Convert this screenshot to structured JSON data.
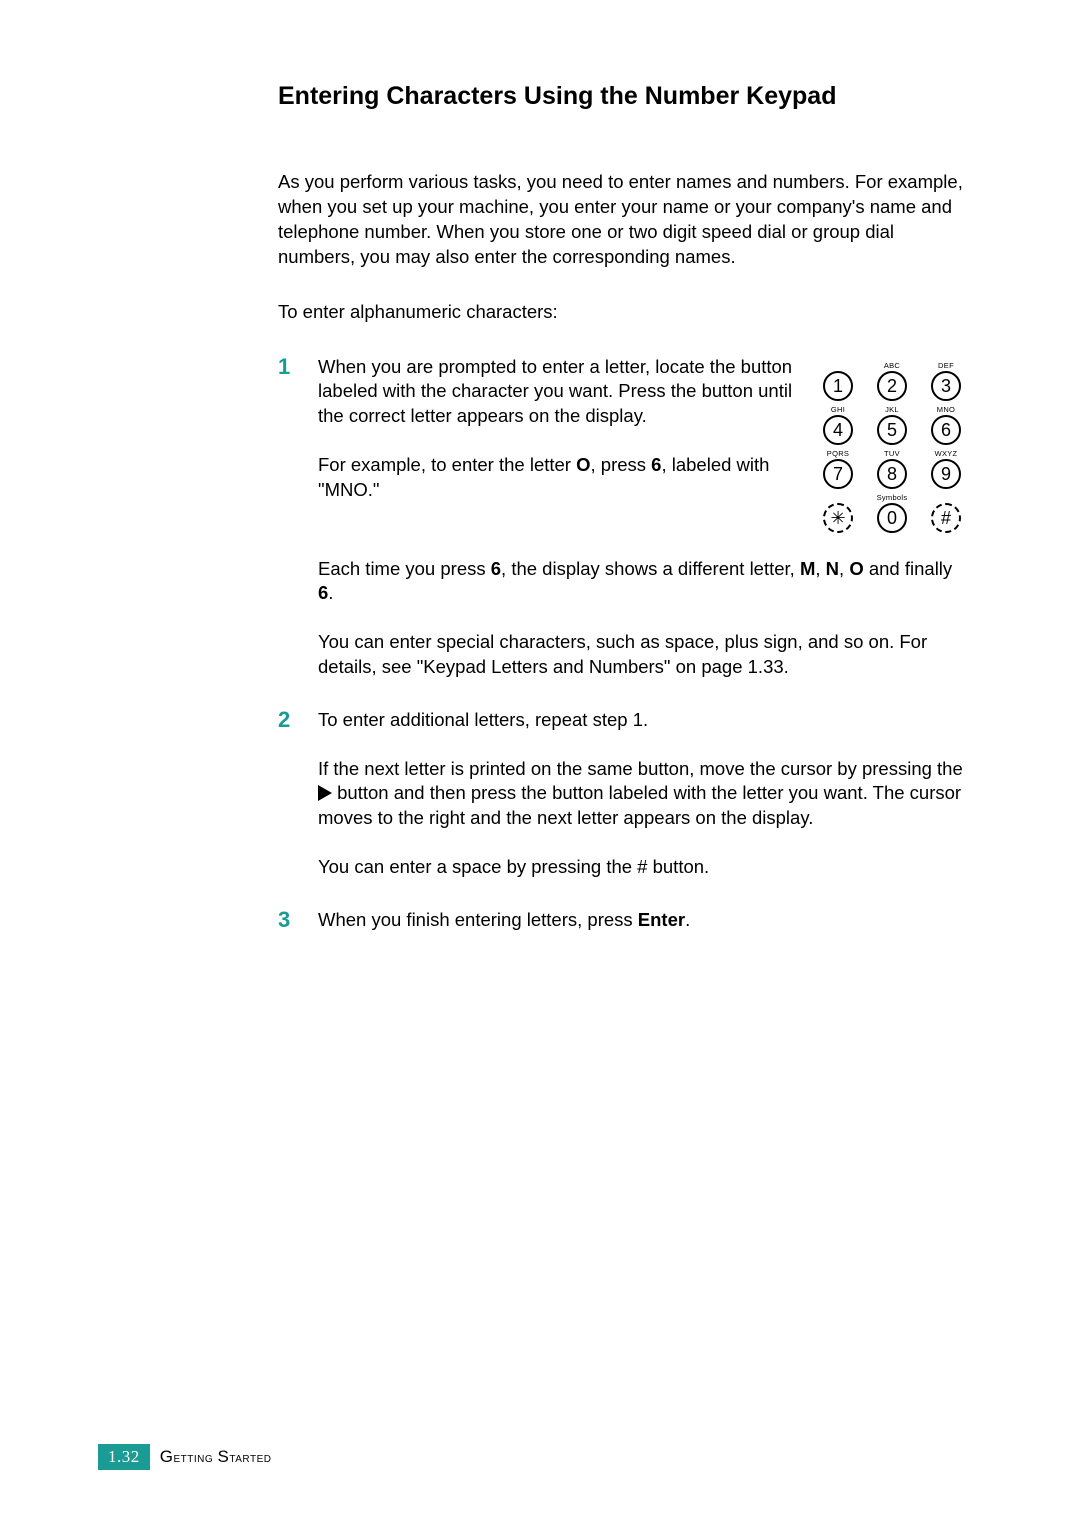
{
  "colors": {
    "accent": "#1a9b94",
    "text": "#000000",
    "bg": "#ffffff"
  },
  "title": "Entering Characters Using the Number Keypad",
  "intro": "As you perform various tasks, you need to enter names and numbers. For example, when you set up your machine, you enter your name or your company's name and telephone number. When you store one or two digit speed dial or group dial numbers, you may also enter the corresponding names.",
  "lead": "To enter alphanumeric characters:",
  "steps": [
    {
      "num": "1",
      "p1": "When you are prompted to enter a letter, locate the button labeled with the character you want. Press the button until the correct letter appears on the display.",
      "p2a": "For example, to enter the letter ",
      "p2bold1": "O",
      "p2b": ", press ",
      "p2bold2": "6",
      "p2c": ", labeled with \"MNO.\"",
      "p3a": "Each time you press ",
      "p3bold1": "6",
      "p3b": ", the display shows a different letter, ",
      "p3bold2": "M",
      "p3c": ", ",
      "p3bold3": "N",
      "p3d": ", ",
      "p3bold4": "O",
      "p3e": " and finally ",
      "p3bold5": "6",
      "p3f": ".",
      "p4": "You can enter special characters, such as space, plus sign, and so on. For details, see \"Keypad Letters and Numbers\" on page 1.33."
    },
    {
      "num": "2",
      "p1": "To enter additional letters, repeat step 1.",
      "p2a": "If the next letter is printed on the same button, move the cursor by pressing the ",
      "p2b": " button and then press the button labeled with the letter you want. The cursor moves to the right and the next letter appears on the display.",
      "p3a": "You can enter a space by pressing the ",
      "p3hash": "#",
      "p3b": " button."
    },
    {
      "num": "3",
      "p1a": "When you finish entering letters, press ",
      "p1bold": "Enter",
      "p1b": "."
    }
  ],
  "keypad": {
    "keys": [
      {
        "label": "",
        "digit": "1",
        "dashed": false
      },
      {
        "label": "ABC",
        "digit": "2",
        "dashed": false
      },
      {
        "label": "DEF",
        "digit": "3",
        "dashed": false
      },
      {
        "label": "GHI",
        "digit": "4",
        "dashed": false
      },
      {
        "label": "JKL",
        "digit": "5",
        "dashed": false
      },
      {
        "label": "MNO",
        "digit": "6",
        "dashed": false
      },
      {
        "label": "PQRS",
        "digit": "7",
        "dashed": false
      },
      {
        "label": "TUV",
        "digit": "8",
        "dashed": false
      },
      {
        "label": "WXYZ",
        "digit": "9",
        "dashed": false
      },
      {
        "label": "",
        "digit": "✳",
        "dashed": true
      },
      {
        "label": "Symbols",
        "digit": "0",
        "dashed": false
      },
      {
        "label": "",
        "digit": "#",
        "dashed": true
      }
    ]
  },
  "footer": {
    "page": "1.32",
    "section": "Getting Started"
  }
}
